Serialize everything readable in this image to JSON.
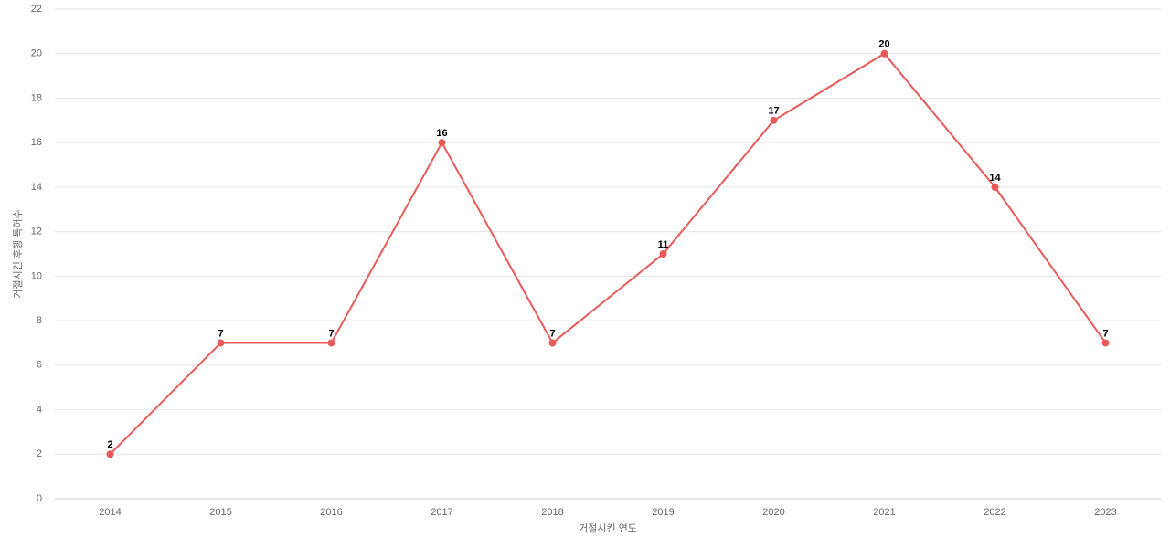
{
  "chart_data": {
    "type": "line",
    "x_label": "거절시킨 연도",
    "y_label": "거절시킨 후행 특허수",
    "categories": [
      "2014",
      "2015",
      "2016",
      "2017",
      "2018",
      "2019",
      "2020",
      "2021",
      "2022",
      "2023"
    ],
    "series": [
      {
        "name": "거절시킨 후행 특허수",
        "color": "#e85a5a",
        "values": [
          2,
          7,
          7,
          16,
          7,
          11,
          17,
          20,
          14,
          7
        ]
      }
    ],
    "ylim": [
      0,
      22
    ],
    "yticks": [
      0,
      2,
      4,
      6,
      8,
      10,
      12,
      14,
      16,
      18,
      20,
      22
    ],
    "grid": true
  }
}
